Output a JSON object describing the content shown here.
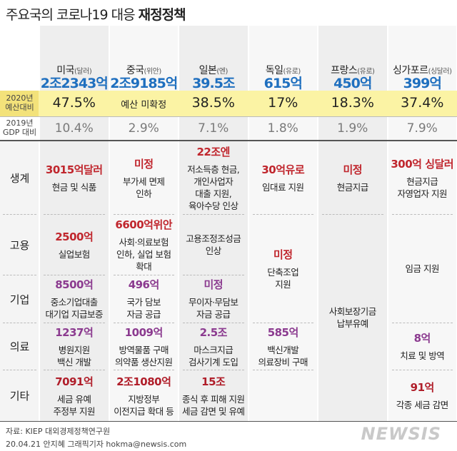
{
  "header": {
    "title_prefix": "주요국의 코로나19 대응",
    "title_emphasis": "재정정책"
  },
  "row_labels": {
    "budget": [
      "2020년",
      "예산대비"
    ],
    "gdp": [
      "2019년",
      "GDP 대비"
    ],
    "categories": [
      "생계",
      "고용",
      "기업",
      "의료",
      "기타"
    ]
  },
  "countries": [
    {
      "name": "미국",
      "currency": "(달러)",
      "total": "2조2343억",
      "budget": "47.5%",
      "gdp": "10.4%",
      "cells": [
        {
          "amount": "3015억달러",
          "lines": [
            "현금 및 식품"
          ]
        },
        {
          "amount": "2500억",
          "lines": [
            "실업보험"
          ]
        },
        {
          "amount": "8500억",
          "lines": [
            "중소기업대출",
            "대기업 지급보증"
          ]
        },
        {
          "amount": "1237억",
          "lines": [
            "병원지원",
            "백신 개발"
          ]
        },
        {
          "amount": "7091억",
          "lines": [
            "세금 유예",
            "주정부 지원"
          ]
        }
      ]
    },
    {
      "name": "중국",
      "currency": "(위안)",
      "total": "2조9185억",
      "budget": "예산 미확정",
      "gdp": "2.9%",
      "cells": [
        {
          "amount": "미정",
          "lines": [
            "부가세 면제",
            "인하"
          ]
        },
        {
          "amount": "6600억위안",
          "lines": [
            "사회·의료보험",
            "인하, 실업 보험",
            "확대"
          ]
        },
        {
          "amount": "496억",
          "lines": [
            "국가 담보",
            "자금 공급"
          ]
        },
        {
          "amount": "1009억",
          "lines": [
            "방역물품 구매",
            "의약품 생산지원"
          ]
        },
        {
          "amount": "2조1080억",
          "lines": [
            "지방정부",
            "이전지급 확대 등"
          ]
        }
      ]
    },
    {
      "name": "일본",
      "currency": "(엔)",
      "total": "39.5조",
      "budget": "38.5%",
      "gdp": "7.1%",
      "cells": [
        {
          "amount": "22조엔",
          "lines": [
            "저소득층 현금,",
            "개인사업자",
            "대출 지원,",
            "육아수당 인상"
          ]
        },
        {
          "lines": [
            "고용조정조성금",
            "인상"
          ]
        },
        {
          "amount": "미정",
          "lines": [
            "무이자·무담보",
            "자금 공급"
          ]
        },
        {
          "amount": "2.5조",
          "lines": [
            "마스크지급",
            "검사기계 도입"
          ]
        },
        {
          "amount": "15조",
          "lines": [
            "종식 후 피해 지원",
            "세금 감면 및 유예"
          ]
        }
      ]
    },
    {
      "name": "독일",
      "currency": "(유로)",
      "total": "615억",
      "budget": "17%",
      "gdp": "1.8%",
      "cells": [
        {
          "amount": "30억유로",
          "lines": [
            "임대료 지원"
          ]
        },
        {
          "amount": "미정",
          "lines": [
            "단축조업",
            "지원"
          ]
        },
        {
          "amount": "585억",
          "lines": [
            "백신개발",
            "의료장비 구매"
          ]
        }
      ]
    },
    {
      "name": "프랑스",
      "currency": "(유로)",
      "total": "450억",
      "budget": "18.3%",
      "gdp": "1.9%",
      "cells": [
        {
          "amount": "미정",
          "lines": [
            "현금지급"
          ]
        },
        {
          "lines": [
            "사회보장기금",
            "납부유예"
          ]
        }
      ]
    },
    {
      "name": "싱가포르",
      "currency": "(싱달러)",
      "total": "399억",
      "budget": "37.4%",
      "gdp": "7.9%",
      "cells": [
        {
          "amount": "300억 싱달러",
          "lines": [
            "현금지급",
            "자영업자 지원"
          ]
        },
        {
          "lines": [
            "임금 지원"
          ]
        },
        {
          "amount": "8억",
          "lines": [
            "치료 및 방역"
          ]
        },
        {
          "amount": "91억",
          "lines": [
            "각종 세금 감면"
          ]
        }
      ]
    }
  ],
  "footer": {
    "source": "자료: KIEP 대외경제정책연구원",
    "credit": "20.04.21 안지혜 그래픽기자 hokma@newsis.com",
    "logo": "NEWSIS"
  }
}
